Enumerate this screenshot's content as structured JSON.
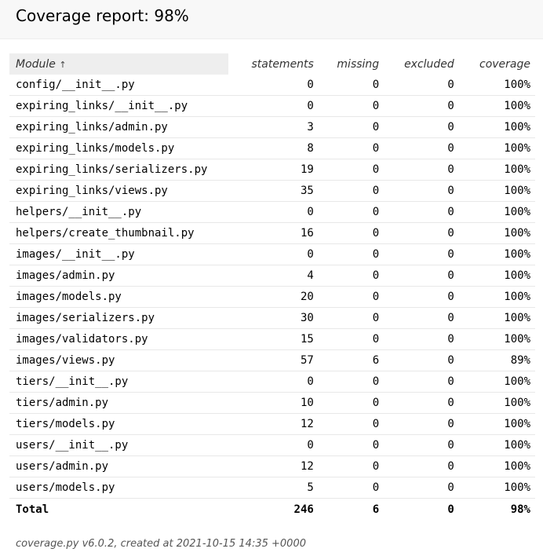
{
  "title": "Coverage report:",
  "title_pct": "98%",
  "columns": {
    "module": "Module",
    "module_sort": "↑",
    "statements": "statements",
    "missing": "missing",
    "excluded": "excluded",
    "coverage": "coverage"
  },
  "rows": [
    {
      "module": "config/__init__.py",
      "statements": "0",
      "missing": "0",
      "excluded": "0",
      "coverage": "100%"
    },
    {
      "module": "expiring_links/__init__.py",
      "statements": "0",
      "missing": "0",
      "excluded": "0",
      "coverage": "100%"
    },
    {
      "module": "expiring_links/admin.py",
      "statements": "3",
      "missing": "0",
      "excluded": "0",
      "coverage": "100%"
    },
    {
      "module": "expiring_links/models.py",
      "statements": "8",
      "missing": "0",
      "excluded": "0",
      "coverage": "100%"
    },
    {
      "module": "expiring_links/serializers.py",
      "statements": "19",
      "missing": "0",
      "excluded": "0",
      "coverage": "100%"
    },
    {
      "module": "expiring_links/views.py",
      "statements": "35",
      "missing": "0",
      "excluded": "0",
      "coverage": "100%"
    },
    {
      "module": "helpers/__init__.py",
      "statements": "0",
      "missing": "0",
      "excluded": "0",
      "coverage": "100%"
    },
    {
      "module": "helpers/create_thumbnail.py",
      "statements": "16",
      "missing": "0",
      "excluded": "0",
      "coverage": "100%"
    },
    {
      "module": "images/__init__.py",
      "statements": "0",
      "missing": "0",
      "excluded": "0",
      "coverage": "100%"
    },
    {
      "module": "images/admin.py",
      "statements": "4",
      "missing": "0",
      "excluded": "0",
      "coverage": "100%"
    },
    {
      "module": "images/models.py",
      "statements": "20",
      "missing": "0",
      "excluded": "0",
      "coverage": "100%"
    },
    {
      "module": "images/serializers.py",
      "statements": "30",
      "missing": "0",
      "excluded": "0",
      "coverage": "100%"
    },
    {
      "module": "images/validators.py",
      "statements": "15",
      "missing": "0",
      "excluded": "0",
      "coverage": "100%"
    },
    {
      "module": "images/views.py",
      "statements": "57",
      "missing": "6",
      "excluded": "0",
      "coverage": "89%"
    },
    {
      "module": "tiers/__init__.py",
      "statements": "0",
      "missing": "0",
      "excluded": "0",
      "coverage": "100%"
    },
    {
      "module": "tiers/admin.py",
      "statements": "10",
      "missing": "0",
      "excluded": "0",
      "coverage": "100%"
    },
    {
      "module": "tiers/models.py",
      "statements": "12",
      "missing": "0",
      "excluded": "0",
      "coverage": "100%"
    },
    {
      "module": "users/__init__.py",
      "statements": "0",
      "missing": "0",
      "excluded": "0",
      "coverage": "100%"
    },
    {
      "module": "users/admin.py",
      "statements": "12",
      "missing": "0",
      "excluded": "0",
      "coverage": "100%"
    },
    {
      "module": "users/models.py",
      "statements": "5",
      "missing": "0",
      "excluded": "0",
      "coverage": "100%"
    }
  ],
  "total": {
    "label": "Total",
    "statements": "246",
    "missing": "6",
    "excluded": "0",
    "coverage": "98%"
  },
  "footer": {
    "created_text": "coverage.py v6.0.2, created at 2021-10-15 14:35 +0000"
  }
}
